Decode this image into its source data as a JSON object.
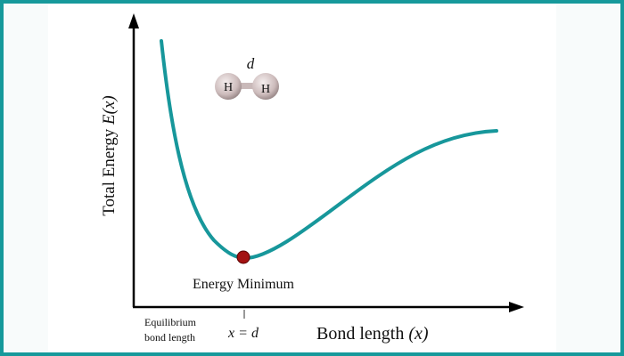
{
  "diagram": {
    "y_axis_label_prefix": "Total Energy ",
    "y_axis_label_var": "E(x)",
    "x_axis_label_prefix": "Bond length ",
    "x_axis_label_var": "(x)",
    "minimum_label": "Energy Minimum",
    "tick_label": "x = d",
    "equilibrium_label_line1": "Equilibrium",
    "equilibrium_label_line2": "bond length",
    "molecule": {
      "distance_label": "d",
      "atom1": "H",
      "atom2": "H"
    },
    "colors": {
      "curve": "#17979b",
      "minimum_point": "#a31212",
      "border": "#16999b",
      "atom": "#d9cccc"
    }
  }
}
